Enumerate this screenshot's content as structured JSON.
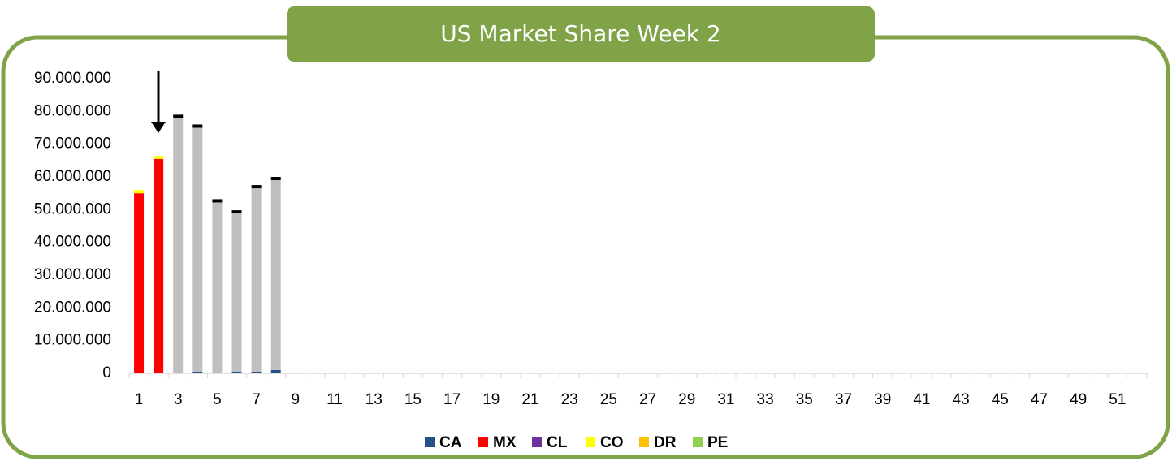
{
  "chart_data": {
    "type": "stacked_bar",
    "title": "US Market Share Week 2",
    "categories": [
      1,
      null,
      3,
      null,
      5,
      null,
      7,
      null,
      9,
      null,
      11,
      null,
      13,
      null,
      15,
      null,
      17,
      null,
      19,
      null,
      21,
      null,
      23,
      null,
      25,
      null,
      27,
      null,
      29,
      null,
      31,
      null,
      33,
      null,
      35,
      null,
      37,
      null,
      39,
      null,
      41,
      null,
      43,
      null,
      45,
      null,
      47,
      null,
      49,
      null,
      51,
      null
    ],
    "series": [
      {
        "name": "CA",
        "color": "#264f8a",
        "values": [
          null,
          null,
          null,
          500000,
          200000,
          500000,
          500000,
          1000000,
          null,
          null,
          null,
          null,
          null,
          null,
          null,
          null,
          null,
          null,
          null,
          null,
          null,
          null,
          null,
          null,
          null,
          null,
          null,
          null,
          null,
          null,
          null,
          null,
          null,
          null,
          null,
          null,
          null,
          null,
          null,
          null,
          null,
          null,
          null,
          null,
          null,
          null,
          null,
          null,
          null,
          null,
          null,
          null
        ]
      },
      {
        "name": "MX",
        "color": "#ff0000",
        "values": [
          55000000,
          65500000,
          null,
          null,
          null,
          null,
          null,
          null,
          null,
          null,
          null,
          null,
          null,
          null,
          null,
          null,
          null,
          null,
          null,
          null,
          null,
          null,
          null,
          null,
          null,
          null,
          null,
          null,
          null,
          null,
          null,
          null,
          null,
          null,
          null,
          null,
          null,
          null,
          null,
          null,
          null,
          null,
          null,
          null,
          null,
          null,
          null,
          null,
          null,
          null,
          null,
          null
        ]
      },
      {
        "name": "CL",
        "color": "#7030a0",
        "values": [
          null,
          null,
          null,
          null,
          null,
          null,
          null,
          null,
          null,
          null,
          null,
          null,
          null,
          null,
          null,
          null,
          null,
          null,
          null,
          null,
          null,
          null,
          null,
          null,
          null,
          null,
          null,
          null,
          null,
          null,
          null,
          null,
          null,
          null,
          null,
          null,
          null,
          null,
          null,
          null,
          null,
          null,
          null,
          null,
          null,
          null,
          null,
          null,
          null,
          null,
          null,
          null
        ]
      },
      {
        "name": "CO",
        "color": "#ffff00",
        "values": [
          1000000,
          900000,
          null,
          null,
          null,
          null,
          null,
          null,
          null,
          null,
          null,
          null,
          null,
          null,
          null,
          null,
          null,
          null,
          null,
          null,
          null,
          null,
          null,
          null,
          null,
          null,
          null,
          null,
          null,
          null,
          null,
          null,
          null,
          null,
          null,
          null,
          null,
          null,
          null,
          null,
          null,
          null,
          null,
          null,
          null,
          null,
          null,
          null,
          null,
          null,
          null,
          null
        ]
      },
      {
        "name": "DR",
        "color": "#ffc000",
        "values": [
          null,
          null,
          null,
          null,
          null,
          null,
          null,
          null,
          null,
          null,
          null,
          null,
          null,
          null,
          null,
          null,
          null,
          null,
          null,
          null,
          null,
          null,
          null,
          null,
          null,
          null,
          null,
          null,
          null,
          null,
          null,
          null,
          null,
          null,
          null,
          null,
          null,
          null,
          null,
          null,
          null,
          null,
          null,
          null,
          null,
          null,
          null,
          null,
          null,
          null,
          null,
          null
        ]
      },
      {
        "name": "PE",
        "color": "#92d050",
        "values": [
          null,
          null,
          null,
          null,
          null,
          null,
          null,
          null,
          null,
          null,
          null,
          null,
          null,
          null,
          null,
          null,
          null,
          null,
          null,
          null,
          null,
          null,
          null,
          null,
          null,
          null,
          null,
          null,
          null,
          null,
          null,
          null,
          null,
          null,
          null,
          null,
          null,
          null,
          null,
          null,
          null,
          null,
          null,
          null,
          null,
          null,
          null,
          null,
          null,
          null,
          null,
          null
        ]
      },
      {
        "color": "#bfbfbf",
        "values": [
          null,
          null,
          78000000,
          74500000,
          52000000,
          48500000,
          56000000,
          58000000,
          null,
          null,
          null,
          null,
          null,
          null,
          null,
          null,
          null,
          null,
          null,
          null,
          null,
          null,
          null,
          null,
          null,
          null,
          null,
          null,
          null,
          null,
          null,
          null,
          null,
          null,
          null,
          null,
          null,
          null,
          null,
          null,
          null,
          null,
          null,
          null,
          null,
          null,
          null,
          null,
          null,
          null,
          null,
          null
        ]
      },
      {
        "color": "#000000",
        "values": [
          null,
          null,
          1000000,
          1000000,
          1000000,
          800000,
          1000000,
          1000000,
          null,
          null,
          null,
          null,
          null,
          null,
          null,
          null,
          null,
          null,
          null,
          null,
          null,
          null,
          null,
          null,
          null,
          null,
          null,
          null,
          null,
          null,
          null,
          null,
          null,
          null,
          null,
          null,
          null,
          null,
          null,
          null,
          null,
          null,
          null,
          null,
          null,
          null,
          null,
          null,
          null,
          null,
          null,
          null
        ]
      }
    ],
    "ylim": [
      0,
      90000000
    ],
    "yticks": [
      0,
      {
        "value": 10000000,
        "label": "10.000.000"
      },
      {
        "value": 20000000,
        "label": "20.000.000"
      },
      {
        "value": 30000000,
        "label": "30.000.000"
      },
      {
        "value": 40000000,
        "label": "40.000.000"
      },
      {
        "value": 50000000,
        "label": "50.000.000"
      },
      {
        "value": 60000000,
        "label": "60.000.000"
      },
      {
        "value": 70000000,
        "label": "70.000.000"
      },
      {
        "value": 80000000,
        "label": "80.000.000"
      },
      {
        "value": 90000000,
        "label": "90.000.000"
      }
    ],
    "grid": false,
    "legend": "bottom"
  }
}
